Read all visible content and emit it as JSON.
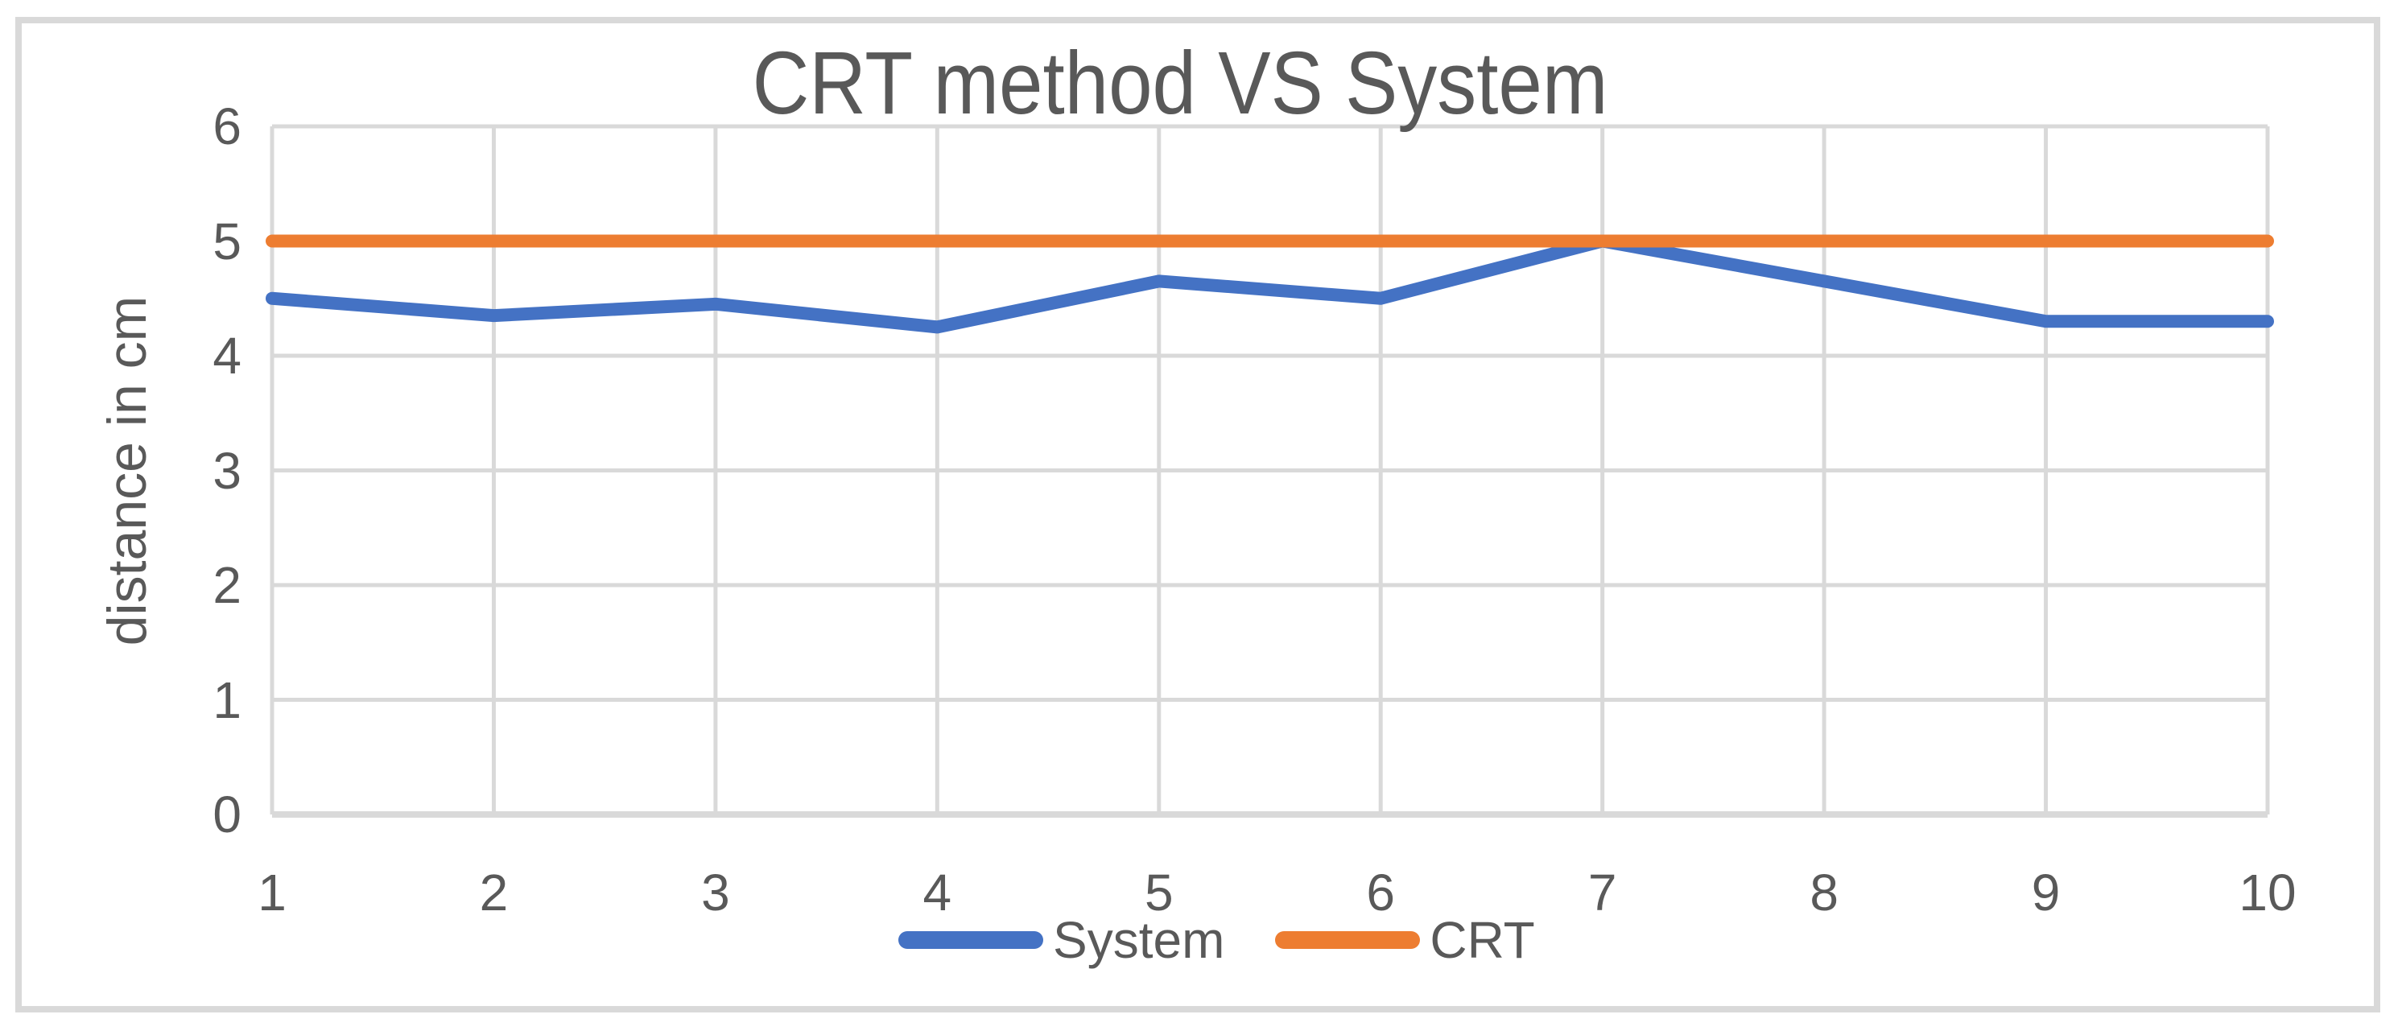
{
  "figure": {
    "background": "#FFFFFF",
    "border_color": "#D9D9D9"
  },
  "chart_data": {
    "type": "line",
    "title": "CRT method VS System",
    "xlabel": "",
    "ylabel": "distance in cm",
    "x": [
      1,
      2,
      3,
      4,
      5,
      6,
      7,
      8,
      9,
      10
    ],
    "x_tick_labels": [
      "1",
      "2",
      "3",
      "4",
      "5",
      "6",
      "7",
      "8",
      "9",
      "10"
    ],
    "y_tick_labels": [
      "0",
      "1",
      "2",
      "3",
      "4",
      "5",
      "6"
    ],
    "ylim": [
      0,
      6
    ],
    "grid": true,
    "legend_position": "bottom-center",
    "series": [
      {
        "name": "System",
        "color": "#4472C4",
        "values": [
          4.5,
          4.35,
          4.45,
          4.25,
          4.65,
          4.5,
          5.0,
          4.65,
          4.3,
          4.3
        ]
      },
      {
        "name": "CRT",
        "color": "#ED7D31",
        "values": [
          5,
          5,
          5,
          5,
          5,
          5,
          5,
          5,
          5,
          5
        ]
      }
    ],
    "text_color": "#595959",
    "gridline_color": "#D9D9D9"
  }
}
